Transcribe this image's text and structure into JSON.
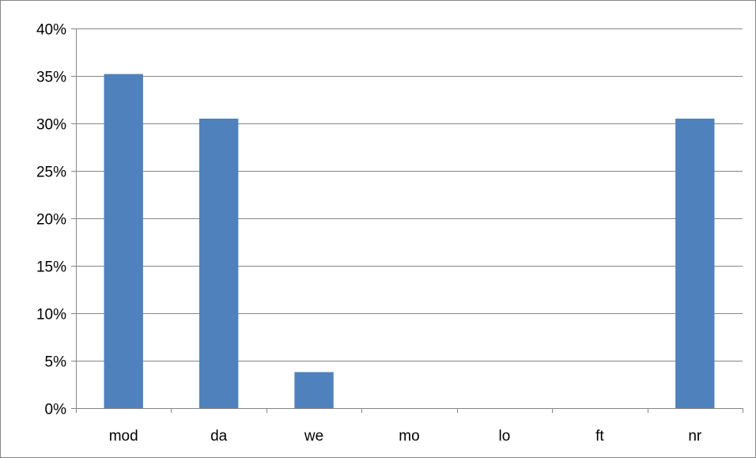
{
  "chart_data": {
    "type": "bar",
    "title": "",
    "xlabel": "",
    "ylabel": "",
    "categories": [
      "mod",
      "da",
      "we",
      "mo",
      "lo",
      "ft",
      "nr"
    ],
    "values": [
      0.352,
      0.305,
      0.038,
      0,
      0,
      0,
      0.305
    ],
    "ylim": [
      0,
      0.4
    ],
    "yticks": [
      0,
      0.05,
      0.1,
      0.15,
      0.2,
      0.25,
      0.3,
      0.35,
      0.4
    ],
    "ytick_labels": [
      "0%",
      "5%",
      "10%",
      "15%",
      "20%",
      "25%",
      "30%",
      "35%",
      "40%"
    ],
    "grid": true,
    "legend": "none",
    "bar_color": "#4F81BD",
    "grid_color": "#868686"
  }
}
